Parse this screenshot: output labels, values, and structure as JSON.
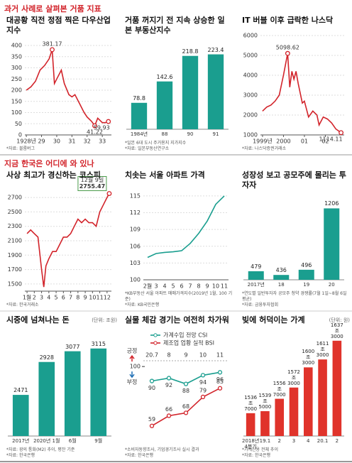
{
  "headings": [
    "과거 사례로 살펴본 거품 지표",
    "지금 한국은 어디에 와 있나"
  ],
  "chart_data": [
    {
      "type": "line",
      "title": "대공황 직전 정점 찍은 다우산업지수",
      "color": "#d2232a",
      "grid": true,
      "x": [
        1928.0,
        1928.3,
        1928.6,
        1928.9,
        1929.2,
        1929.5,
        1929.7,
        1929.85,
        1930.0,
        1930.3,
        1930.5,
        1930.8,
        1931.0,
        1931.2,
        1931.5,
        1931.8,
        1932.0,
        1932.3,
        1932.5,
        1932.7,
        1933.0,
        1933.2,
        1933.4
      ],
      "values": [
        200,
        215,
        240,
        290,
        310,
        340,
        381.17,
        230,
        250,
        290,
        230,
        180,
        170,
        180,
        140,
        100,
        80,
        60,
        41.22,
        75,
        55,
        55,
        59.93
      ],
      "xlim": [
        1927.9,
        1933.6
      ],
      "xticks": [
        {
          "value": 1928,
          "label": "1928년"
        },
        {
          "value": 1929,
          "label": "29"
        },
        {
          "value": 1930,
          "label": "30"
        },
        {
          "value": 1931,
          "label": "31"
        },
        {
          "value": 1932,
          "label": "32"
        },
        {
          "value": 1933,
          "label": "33"
        }
      ],
      "ylim": [
        0,
        400
      ],
      "yticks": [
        0,
        50,
        100,
        150,
        200,
        250,
        300,
        350,
        400
      ],
      "annotations": [
        {
          "x": 1929.7,
          "y": 381.17
        },
        {
          "x": 1932.5,
          "y": 41.22
        },
        {
          "x": 1933.4,
          "y": 59.93
        }
      ],
      "sources": [
        "*자료: 블룸버그"
      ]
    },
    {
      "type": "bar",
      "title": "거품 꺼지기 전 지속 상승한 일본 부동산지수",
      "color": "#1a9e8f",
      "categories": [
        "1984년",
        "88",
        "90",
        "91"
      ],
      "values": [
        78.8,
        142.6,
        218.8,
        223.4
      ],
      "ylim": [
        0,
        250
      ],
      "sources": [
        "*일본 6대 도시 주거용지 지가지수",
        "*자료: 일본부동산연구소"
      ]
    },
    {
      "type": "line",
      "title": "IT 버블 이후 급락한 나스닥",
      "color": "#d2232a",
      "grid": true,
      "x": [
        1999.0,
        1999.2,
        1999.4,
        1999.6,
        1999.8,
        2000.0,
        2000.2,
        2000.3,
        2000.4,
        2000.5,
        2000.6,
        2000.7,
        2000.9,
        2001.0,
        2001.2,
        2001.4,
        2001.6,
        2001.7,
        2001.9,
        2002.1,
        2002.3,
        2002.5,
        2002.75
      ],
      "values": [
        2200,
        2400,
        2500,
        2700,
        3000,
        4000,
        5098.62,
        3400,
        4200,
        3800,
        4200,
        3600,
        2600,
        2700,
        1900,
        2200,
        2000,
        1500,
        1900,
        1800,
        1600,
        1300,
        1114.11
      ],
      "xlim": [
        1998.9,
        2002.9
      ],
      "xticks": [
        {
          "value": 1999,
          "label": "1999년"
        },
        2000,
        {
          "value": 2001,
          "label": "01"
        },
        {
          "value": 2002,
          "label": "02"
        }
      ],
      "ylim": [
        1000,
        6000
      ],
      "yticks": [
        1000,
        2000,
        3000,
        4000,
        5000,
        6000
      ],
      "annotations": [
        {
          "x": 2000.2,
          "y": 5098.62
        },
        {
          "x": 2002.75,
          "y": 1114.11
        }
      ],
      "sources": [
        "*자료: 나스닥증권거래소"
      ]
    },
    {
      "type": "line",
      "title": "사상 최고가 경신하는 코스피",
      "color": "#d2232a",
      "grid": true,
      "x": [
        1,
        1.5,
        2,
        2.5,
        3,
        3.3,
        3.6,
        4,
        4.5,
        5,
        5.5,
        6,
        6.5,
        7,
        7.5,
        8,
        8.5,
        9,
        9.5,
        10,
        10.5,
        11,
        11.5,
        12,
        12.3
      ],
      "values": [
        2200,
        2250,
        2200,
        2150,
        1700,
        1457,
        1750,
        1850,
        1950,
        1950,
        2050,
        2150,
        2150,
        2200,
        2300,
        2400,
        2350,
        2400,
        2350,
        2350,
        2300,
        2500,
        2600,
        2700,
        2755.47
      ],
      "xlim": [
        0.7,
        12.6
      ],
      "xticks": [
        {
          "value": 1,
          "label": "1월"
        },
        2,
        3,
        4,
        5,
        6,
        7,
        8,
        9,
        10,
        11,
        12
      ],
      "ylim": [
        1400,
        2800
      ],
      "yticks": [
        1500,
        1700,
        1900,
        2100,
        2300,
        2500,
        2700
      ],
      "annotations": [
        {
          "x": 12.3,
          "y": 2755.47,
          "date": "12월 9일"
        }
      ],
      "sources": [
        "*자료: 한국거래소"
      ]
    },
    {
      "type": "line",
      "title": "치솟는 서울 아파트 가격",
      "color": "#1a9e8f",
      "grid": true,
      "categories": [
        "2월",
        "3",
        "4",
        "5",
        "6",
        "7",
        "8",
        "9",
        "10",
        "11"
      ],
      "values": [
        104,
        104.7,
        104.9,
        105,
        105.2,
        106.5,
        108.3,
        110.5,
        113.5,
        115
      ],
      "ylim": [
        100,
        116
      ],
      "yticks": [
        100,
        103,
        106,
        109,
        112,
        115
      ],
      "sources": [
        "*KB부동산 서울 아파트 매매가격지수(2019년 1월, 100 기준)",
        "*자료: KB국민은행"
      ]
    },
    {
      "type": "bar",
      "title": "성장성 보고 공모주에 몰리는 투자자",
      "color": "#1a9e8f",
      "categories": [
        "2017년",
        "18",
        "19",
        "20"
      ],
      "values": [
        479,
        436,
        496,
        1206
      ],
      "ylim": [
        380,
        1300
      ],
      "sources": [
        "*연도별 일반투자자 공모주 청약 경쟁률(7월 1일~8월 6일 평균)",
        "*자료: 금융투자협회"
      ]
    },
    {
      "type": "bar",
      "title": "시중에 넘쳐나는 돈",
      "unit": "(단위: 조원)",
      "color": "#1a9e8f",
      "categories": [
        "2017년",
        "2020년 1월",
        "6월",
        "9월"
      ],
      "values": [
        2471,
        2928,
        3077,
        3115
      ],
      "ylim": [
        1900,
        3300
      ],
      "sources": [
        "*자료: 광의 통화(M2) 추이, 평잔 기준",
        "*자료: 한국은행"
      ]
    },
    {
      "type": "line",
      "title": "실물 체감 경기는 여전히 차가워",
      "xaxis_position": "top",
      "categories": [
        "20.7",
        "8",
        "9",
        "10",
        "11"
      ],
      "series": [
        {
          "name": "가계수입 전망 CSI",
          "color": "#1a9e8f",
          "values": [
            90,
            92,
            88,
            94,
            96
          ]
        },
        {
          "name": "제조업 업황 실적 BSI",
          "color": "#d2232a",
          "values": [
            59,
            66,
            68,
            79,
            85
          ]
        }
      ],
      "ylim": [
        52,
        104
      ],
      "yticks": [
        100
      ],
      "axis_labels": [
        "긍정",
        "부정"
      ],
      "sources": [
        "*소비자동향조사, 기업경기조사 실시 결과",
        "*자료: 한국은행"
      ]
    },
    {
      "type": "bar",
      "title": "빚에 허덕이는 가계",
      "unit": "(단위: 원)",
      "color": "#e0332b",
      "categories": [
        "2018년 4분기",
        "19.1",
        "2",
        "3",
        "4",
        "20.1",
        "2"
      ],
      "values": [
        1536.7,
        1539.5,
        1556.7,
        1572.3,
        1600.3,
        1611.3,
        1637.3
      ],
      "value_labels": [
        "1536조 7000",
        "1539조 5000",
        "1556조 7000",
        "1572조 3000",
        "1600조 3000",
        "1611조 3000",
        "1637조 3000"
      ],
      "ylim": [
        1505,
        1645
      ],
      "sources": [
        "*가계신용 전체 추이",
        "*자료: 한국은행"
      ]
    }
  ]
}
